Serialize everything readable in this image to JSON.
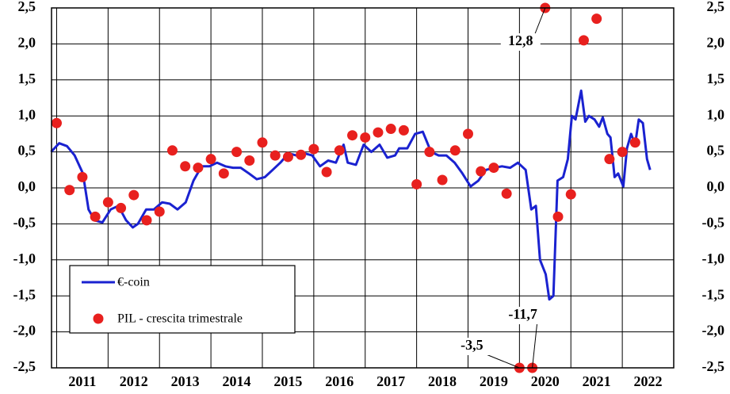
{
  "chart_data": {
    "type": "line",
    "ylim": [
      -2.5,
      2.5
    ],
    "yticks": [
      {
        "value": -2.5,
        "label": "-2,5"
      },
      {
        "value": -2.0,
        "label": "-2,0"
      },
      {
        "value": -1.5,
        "label": "-1,5"
      },
      {
        "value": -1.0,
        "label": "-1,0"
      },
      {
        "value": -0.5,
        "label": "-0,5"
      },
      {
        "value": 0,
        "label": "0,0"
      },
      {
        "value": 0.5,
        "label": "0,5"
      },
      {
        "value": 1.0,
        "label": "1,0"
      },
      {
        "value": 1.5,
        "label": "1,5"
      },
      {
        "value": 2.0,
        "label": "2,0"
      },
      {
        "value": 2.5,
        "label": "2,5"
      }
    ],
    "xlim": [
      2010.9,
      2023.0
    ],
    "xticks": [
      2011,
      2012,
      2013,
      2014,
      2015,
      2016,
      2017,
      2018,
      2019,
      2020,
      2021,
      2022
    ],
    "year_labels": [
      "2011",
      "2012",
      "2013",
      "2014",
      "2015",
      "2016",
      "2017",
      "2018",
      "2019",
      "2020",
      "2021",
      "2022"
    ],
    "grid": true,
    "series": [
      {
        "name": "€-coin",
        "type": "line",
        "color": "#1a22d0",
        "x": [
          2010.89,
          2011.05,
          2011.2,
          2011.35,
          2011.51,
          2011.62,
          2011.74,
          2011.89,
          2012.05,
          2012.2,
          2012.35,
          2012.48,
          2012.58,
          2012.74,
          2012.89,
          2013.05,
          2013.2,
          2013.35,
          2013.51,
          2013.66,
          2013.82,
          2013.97,
          2014.12,
          2014.28,
          2014.43,
          2014.58,
          2014.74,
          2014.89,
          2015.05,
          2015.2,
          2015.35,
          2015.51,
          2015.66,
          2015.82,
          2015.97,
          2016.12,
          2016.28,
          2016.43,
          2016.58,
          2016.66,
          2016.82,
          2016.97,
          2017.12,
          2017.28,
          2017.43,
          2017.58,
          2017.66,
          2017.82,
          2017.97,
          2018.12,
          2018.28,
          2018.43,
          2018.58,
          2018.74,
          2018.89,
          2019.05,
          2019.2,
          2019.35,
          2019.51,
          2019.66,
          2019.82,
          2019.97,
          2020.12,
          2020.23,
          2020.32,
          2020.4,
          2020.51,
          2020.58,
          2020.66,
          2020.74,
          2020.85,
          2020.94,
          2021.02,
          2021.09,
          2021.2,
          2021.28,
          2021.35,
          2021.46,
          2021.55,
          2021.62,
          2021.71,
          2021.77,
          2021.85,
          2021.92,
          2022.02,
          2022.09,
          2022.17,
          2022.25,
          2022.32,
          2022.4,
          2022.48,
          2022.54
        ],
        "values": [
          0.5,
          0.62,
          0.58,
          0.45,
          0.2,
          -0.3,
          -0.45,
          -0.48,
          -0.3,
          -0.25,
          -0.45,
          -0.55,
          -0.5,
          -0.3,
          -0.3,
          -0.2,
          -0.22,
          -0.3,
          -0.2,
          0.1,
          0.3,
          0.3,
          0.35,
          0.3,
          0.28,
          0.28,
          0.2,
          0.12,
          0.15,
          0.25,
          0.35,
          0.48,
          0.45,
          0.48,
          0.45,
          0.3,
          0.38,
          0.35,
          0.6,
          0.35,
          0.32,
          0.6,
          0.5,
          0.6,
          0.42,
          0.45,
          0.55,
          0.55,
          0.75,
          0.78,
          0.5,
          0.45,
          0.45,
          0.35,
          0.2,
          0.02,
          0.1,
          0.25,
          0.28,
          0.3,
          0.28,
          0.35,
          0.25,
          -0.3,
          -0.25,
          -1.0,
          -1.2,
          -1.55,
          -1.5,
          0.1,
          0.15,
          0.4,
          1.0,
          0.95,
          1.35,
          0.92,
          1.0,
          0.95,
          0.85,
          0.98,
          0.75,
          0.7,
          0.15,
          0.2,
          0.02,
          0.55,
          0.75,
          0.6,
          0.95,
          0.9,
          0.4,
          0.25
        ]
      },
      {
        "name": "PIL - crescita trimestrale",
        "type": "scatter",
        "color": "#e8201e",
        "x": [
          2011.0,
          2011.25,
          2011.5,
          2011.75,
          2012.0,
          2012.25,
          2012.5,
          2012.75,
          2013.0,
          2013.25,
          2013.5,
          2013.75,
          2014.0,
          2014.25,
          2014.5,
          2014.75,
          2015.0,
          2015.25,
          2015.5,
          2015.75,
          2016.0,
          2016.25,
          2016.5,
          2016.75,
          2017.0,
          2017.25,
          2017.5,
          2017.75,
          2018.0,
          2018.25,
          2018.5,
          2018.75,
          2019.0,
          2019.25,
          2019.5,
          2019.75,
          2020.0,
          2020.25,
          2020.5,
          2020.75,
          2021.0,
          2021.25,
          2021.5,
          2021.75,
          2022.0,
          2022.25
        ],
        "values": [
          0.9,
          -0.03,
          0.15,
          -0.4,
          -0.2,
          -0.28,
          -0.1,
          -0.45,
          -0.33,
          0.52,
          0.3,
          0.28,
          0.4,
          0.2,
          0.5,
          0.38,
          0.63,
          0.45,
          0.43,
          0.46,
          0.54,
          0.22,
          0.52,
          0.73,
          0.7,
          0.77,
          0.82,
          0.8,
          0.05,
          0.5,
          0.11,
          0.52,
          0.75,
          0.23,
          0.28,
          -0.08,
          -3.5,
          -11.7,
          12.8,
          -0.4,
          -0.09,
          2.05,
          2.35,
          0.4,
          0.5,
          0.63
        ],
        "value_labels": [
          null,
          null,
          null,
          null,
          null,
          null,
          null,
          null,
          null,
          null,
          null,
          null,
          null,
          null,
          null,
          null,
          null,
          null,
          null,
          null,
          null,
          null,
          null,
          null,
          null,
          null,
          null,
          null,
          null,
          null,
          null,
          null,
          null,
          null,
          null,
          null,
          "-3,5",
          "-11,7",
          "12,8",
          null,
          null,
          null,
          null,
          null,
          null,
          null
        ]
      }
    ]
  }
}
